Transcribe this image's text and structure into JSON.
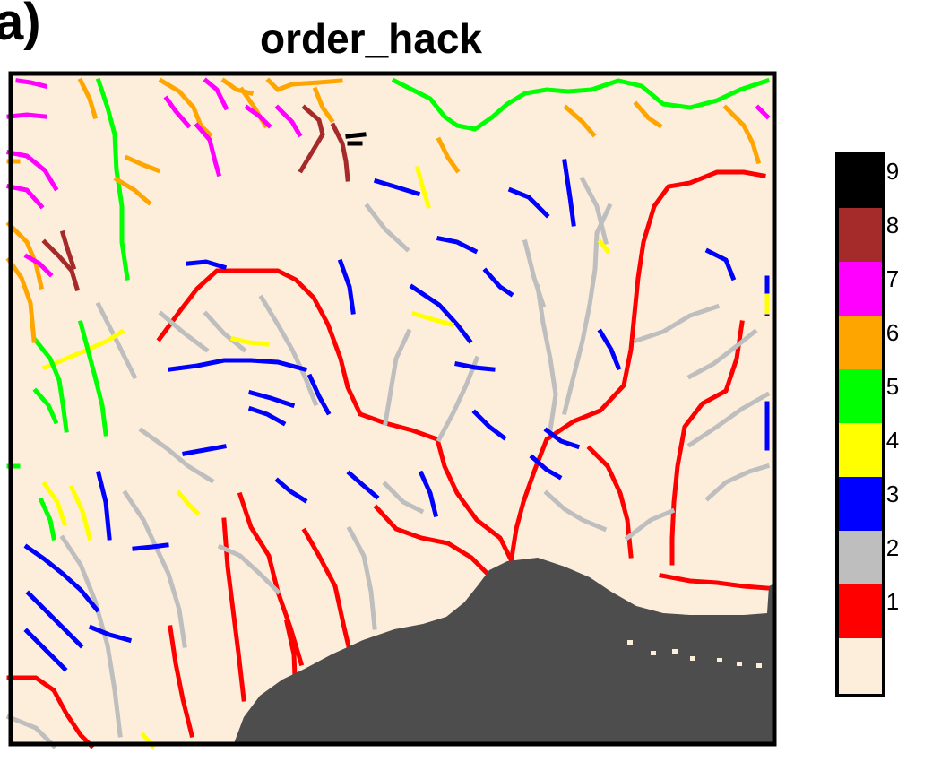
{
  "panel_label": "a)",
  "title": "order_hack",
  "map": {
    "background_color": "#FDEEDC",
    "water_color": "#4D4D4D",
    "stream_orders": [
      {
        "order": 1,
        "color": "#FF0000"
      },
      {
        "order": 2,
        "color": "#BEBEBE"
      },
      {
        "order": 3,
        "color": "#0000FF"
      },
      {
        "order": 4,
        "color": "#FFFF00"
      },
      {
        "order": 5,
        "color": "#00FF00"
      },
      {
        "order": 6,
        "color": "#FFA500"
      },
      {
        "order": 7,
        "color": "#FF00FF"
      },
      {
        "order": 8,
        "color": "#A52A2A"
      },
      {
        "order": 9,
        "color": "#000000"
      }
    ]
  },
  "legend": {
    "no_data_color": "#FDEEDC",
    "classes": [
      {
        "label": "1",
        "color": "#FF0000"
      },
      {
        "label": "2",
        "color": "#BEBEBE"
      },
      {
        "label": "3",
        "color": "#0000FF"
      },
      {
        "label": "4",
        "color": "#FFFF00"
      },
      {
        "label": "5",
        "color": "#00FF00"
      },
      {
        "label": "6",
        "color": "#FFA500"
      },
      {
        "label": "7",
        "color": "#FF00FF"
      },
      {
        "label": "8",
        "color": "#A52A2A"
      },
      {
        "label": "9",
        "color": "#000000"
      }
    ]
  }
}
